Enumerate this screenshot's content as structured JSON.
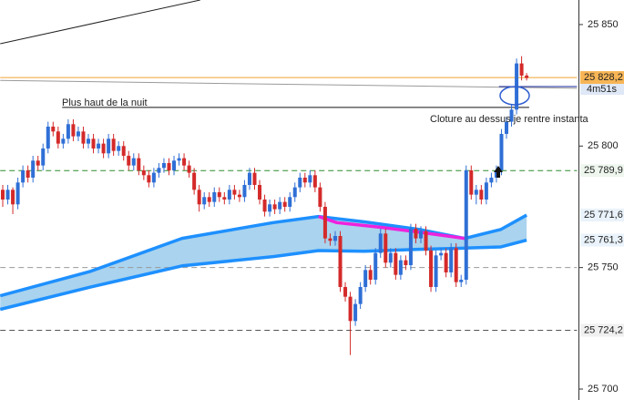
{
  "chart_data": {
    "type": "candlestick",
    "up_color": "#2f6fd6",
    "down_color": "#d42a2a",
    "ylim": [
      25695.5,
      25860.1
    ],
    "yticks": [
      {
        "value": 25850,
        "label": "25 850"
      },
      {
        "value": 25800,
        "label": "25 800"
      },
      {
        "value": 25750,
        "label": "25 750"
      },
      {
        "value": 25700,
        "label": "25 700"
      }
    ],
    "candles": [
      [
        25782,
        25784,
        25775,
        25778
      ],
      [
        25778,
        25784,
        25776,
        25782
      ],
      [
        25782,
        25783,
        25772,
        25776
      ],
      [
        25776,
        25787,
        25774,
        25785
      ],
      [
        25785,
        25792,
        25783,
        25790
      ],
      [
        25790,
        25792,
        25785,
        25787
      ],
      [
        25787,
        25796,
        25785,
        25794
      ],
      [
        25794,
        25796,
        25790,
        25792
      ],
      [
        25792,
        25801,
        25790,
        25799
      ],
      [
        25799,
        25810,
        25797,
        25808
      ],
      [
        25808,
        25810,
        25804,
        25806
      ],
      [
        25806,
        25808,
        25799,
        25801
      ],
      [
        25801,
        25805,
        25799,
        25803
      ],
      [
        25803,
        25811,
        25801,
        25809
      ],
      [
        25809,
        25811,
        25802,
        25804
      ],
      [
        25804,
        25808,
        25802,
        25806
      ],
      [
        25806,
        25808,
        25799,
        25801
      ],
      [
        25801,
        25805,
        25799,
        25803
      ],
      [
        25803,
        25805,
        25797,
        25799
      ],
      [
        25799,
        25803,
        25797,
        25801
      ],
      [
        25801,
        25803,
        25795,
        25797
      ],
      [
        25797,
        25805,
        25795,
        25803
      ],
      [
        25803,
        25805,
        25796,
        25798
      ],
      [
        25798,
        25802,
        25796,
        25800
      ],
      [
        25800,
        25802,
        25794,
        25796
      ],
      [
        25796,
        25798,
        25790,
        25792
      ],
      [
        25792,
        25797,
        25790,
        25795
      ],
      [
        25795,
        25797,
        25788,
        25790
      ],
      [
        25790,
        25792,
        25786,
        25788
      ],
      [
        25788,
        25790,
        25783,
        25785
      ],
      [
        25785,
        25791,
        25783,
        25789
      ],
      [
        25789,
        25793,
        25787,
        25791
      ],
      [
        25791,
        25795,
        25789,
        25793
      ],
      [
        25793,
        25795,
        25788,
        25790
      ],
      [
        25790,
        25796,
        25788,
        25794
      ],
      [
        25794,
        25797,
        25792,
        25795
      ],
      [
        25795,
        25797,
        25790,
        25792
      ],
      [
        25792,
        25794,
        25787,
        25789
      ],
      [
        25789,
        25791,
        25780,
        25782
      ],
      [
        25782,
        25784,
        25773,
        25776
      ],
      [
        25776,
        25781,
        25774,
        25779
      ],
      [
        25779,
        25781,
        25775,
        25777
      ],
      [
        25777,
        25783,
        25775,
        25781
      ],
      [
        25781,
        25783,
        25777,
        25779
      ],
      [
        25779,
        25781,
        25776,
        25778
      ],
      [
        25778,
        25784,
        25776,
        25782
      ],
      [
        25782,
        25784,
        25778,
        25780
      ],
      [
        25780,
        25782,
        25777,
        25779
      ],
      [
        25779,
        25786,
        25777,
        25784
      ],
      [
        25784,
        25791,
        25782,
        25789
      ],
      [
        25789,
        25791,
        25782,
        25784
      ],
      [
        25784,
        25786,
        25776,
        25778
      ],
      [
        25778,
        25780,
        25771,
        25773
      ],
      [
        25773,
        25778,
        25771,
        25776
      ],
      [
        25776,
        25778,
        25772,
        25774
      ],
      [
        25774,
        25779,
        25772,
        25777
      ],
      [
        25777,
        25779,
        25773,
        25775
      ],
      [
        25775,
        25781,
        25773,
        25779
      ],
      [
        25779,
        25785,
        25777,
        25783
      ],
      [
        25783,
        25789,
        25781,
        25787
      ],
      [
        25787,
        25789,
        25783,
        25785
      ],
      [
        25785,
        25790,
        25783,
        25788
      ],
      [
        25788,
        25790,
        25781,
        25783
      ],
      [
        25783,
        25785,
        25773,
        25775
      ],
      [
        25775,
        25777,
        25760,
        25762
      ],
      [
        25762,
        25764,
        25759,
        25761
      ],
      [
        25761,
        25765,
        25759,
        25763
      ],
      [
        25763,
        25765,
        25740,
        25742
      ],
      [
        25742,
        25744,
        25736,
        25738
      ],
      [
        25738,
        25740,
        25714,
        25728
      ],
      [
        25728,
        25737,
        25726,
        25735
      ],
      [
        25735,
        25744,
        25733,
        25742
      ],
      [
        25742,
        25751,
        25740,
        25749
      ],
      [
        25749,
        25751,
        25743,
        25745
      ],
      [
        25745,
        25758,
        25743,
        25756
      ],
      [
        25756,
        25766,
        25754,
        25764
      ],
      [
        25764,
        25766,
        25750,
        25752
      ],
      [
        25752,
        25758,
        25750,
        25756
      ],
      [
        25756,
        25758,
        25745,
        25747
      ],
      [
        25747,
        25755,
        25745,
        25753
      ],
      [
        25753,
        25755,
        25749,
        25751
      ],
      [
        25751,
        25768,
        25749,
        25766
      ],
      [
        25766,
        25768,
        25760,
        25762
      ],
      [
        25762,
        25767,
        25760,
        25765
      ],
      [
        25765,
        25767,
        25755,
        25757
      ],
      [
        25757,
        25759,
        25740,
        25742
      ],
      [
        25742,
        25757,
        25740,
        25755
      ],
      [
        25755,
        25758,
        25753,
        25756
      ],
      [
        25756,
        25758,
        25746,
        25748
      ],
      [
        25748,
        25760,
        25746,
        25758
      ],
      [
        25758,
        25760,
        25742,
        25744
      ],
      [
        25744,
        25747,
        25742,
        25745
      ],
      [
        25745,
        25792,
        25743,
        25790
      ],
      [
        25790,
        25792,
        25778,
        25780
      ],
      [
        25780,
        25784,
        25776,
        25782
      ],
      [
        25782,
        25784,
        25776,
        25778
      ],
      [
        25778,
        25787,
        25776,
        25785
      ],
      [
        25785,
        25789,
        25783,
        25787
      ],
      [
        25787,
        25792,
        25785,
        25790
      ],
      [
        25790,
        25807,
        25788,
        25805
      ],
      [
        25805,
        25812,
        25803,
        25810
      ],
      [
        25810,
        25817,
        25808,
        25815
      ],
      [
        25815,
        25836,
        25813,
        25834
      ],
      [
        25834,
        25837,
        25827,
        25829
      ],
      [
        25829,
        25830,
        25827,
        25828
      ]
    ],
    "band_fill": "#a9d3ee",
    "averages": [
      {
        "color": "#1e90ff",
        "x": [
          -0.5,
          17.5,
          35.6,
          53.7,
          62.7,
          71.8,
          82.6,
          91.7,
          98.9,
          104
        ],
        "values": [
          25738.4,
          25748.5,
          25762,
          25768.5,
          25771,
          25768.8,
          25765.7,
          25762,
          25765.7,
          25771.6
        ]
      },
      {
        "color": "#1e90ff",
        "x": [
          -0.5,
          17.5,
          35.6,
          53.7,
          62.7,
          71.8,
          82.6,
          91.7,
          98.9,
          104
        ],
        "values": [
          25732.8,
          25742,
          25750.7,
          25754.5,
          25757,
          25756.7,
          25757.5,
          25758,
          25758.5,
          25761.3
        ]
      },
      {
        "color": "#ee22dd",
        "x": [
          62.7,
          66.3,
          75.3,
          82.6,
          91.7
        ],
        "values": [
          25771,
          25768.5,
          25766.5,
          25764.6,
          25762
        ]
      }
    ],
    "lines": [
      {
        "x": [
          -0.5,
          39.2
        ],
        "values": [
          25842.1,
          25860.1
        ],
        "color": "#222222",
        "dash": false
      },
      {
        "x": [
          -0.5,
          114
        ],
        "values": [
          25827,
          25823.8
        ],
        "color": "#9a9a9a",
        "dash": false
      },
      {
        "x": [
          11.8,
          104.5
        ],
        "values": [
          25815.9,
          25815.9
        ],
        "color": "#111111",
        "dash": false
      },
      {
        "x": [
          -0.5,
          114
        ],
        "values": [
          25828.2,
          25828.2
        ],
        "color": "#f0a030",
        "dash": false
      },
      {
        "x": [
          98.5,
          114
        ],
        "values": [
          25824.5,
          25824.5
        ],
        "color": "#1a2a9a",
        "dash": false
      },
      {
        "x": [
          -0.5,
          114
        ],
        "values": [
          25789.9,
          25789.9
        ],
        "color": "#2e8b2e",
        "dash": true
      },
      {
        "x": [
          -0.5,
          114
        ],
        "values": [
          25750,
          25750
        ],
        "color": "#999999",
        "dash": true
      },
      {
        "x": [
          -0.5,
          114
        ],
        "values": [
          25724.2,
          25724.2
        ],
        "color": "#555555",
        "dash": true
      }
    ],
    "levels": [
      {
        "value": 25828.2,
        "label": "25 828,2",
        "color": "#222222",
        "bg": "#f7b556"
      },
      {
        "value": 25789.9,
        "label": "25 789,9",
        "color": "#2e8b2e",
        "bg": "#eef6ee"
      },
      {
        "value": 25771.6,
        "label": "25 771,6",
        "color": "#1e6fd0",
        "bg": "#eaf3fb"
      },
      {
        "value": 25761.3,
        "label": "25 761,3",
        "color": "#1e6fd0",
        "bg": "#eaf3fb"
      },
      {
        "value": 25724.2,
        "label": "25 724,2",
        "color": "#333333",
        "bg": "#f0f0f0"
      }
    ],
    "countdown": "4m51s",
    "annotations": [
      "Plus haut de la nuit",
      "Cloture au dessus je rentre instanta"
    ]
  }
}
